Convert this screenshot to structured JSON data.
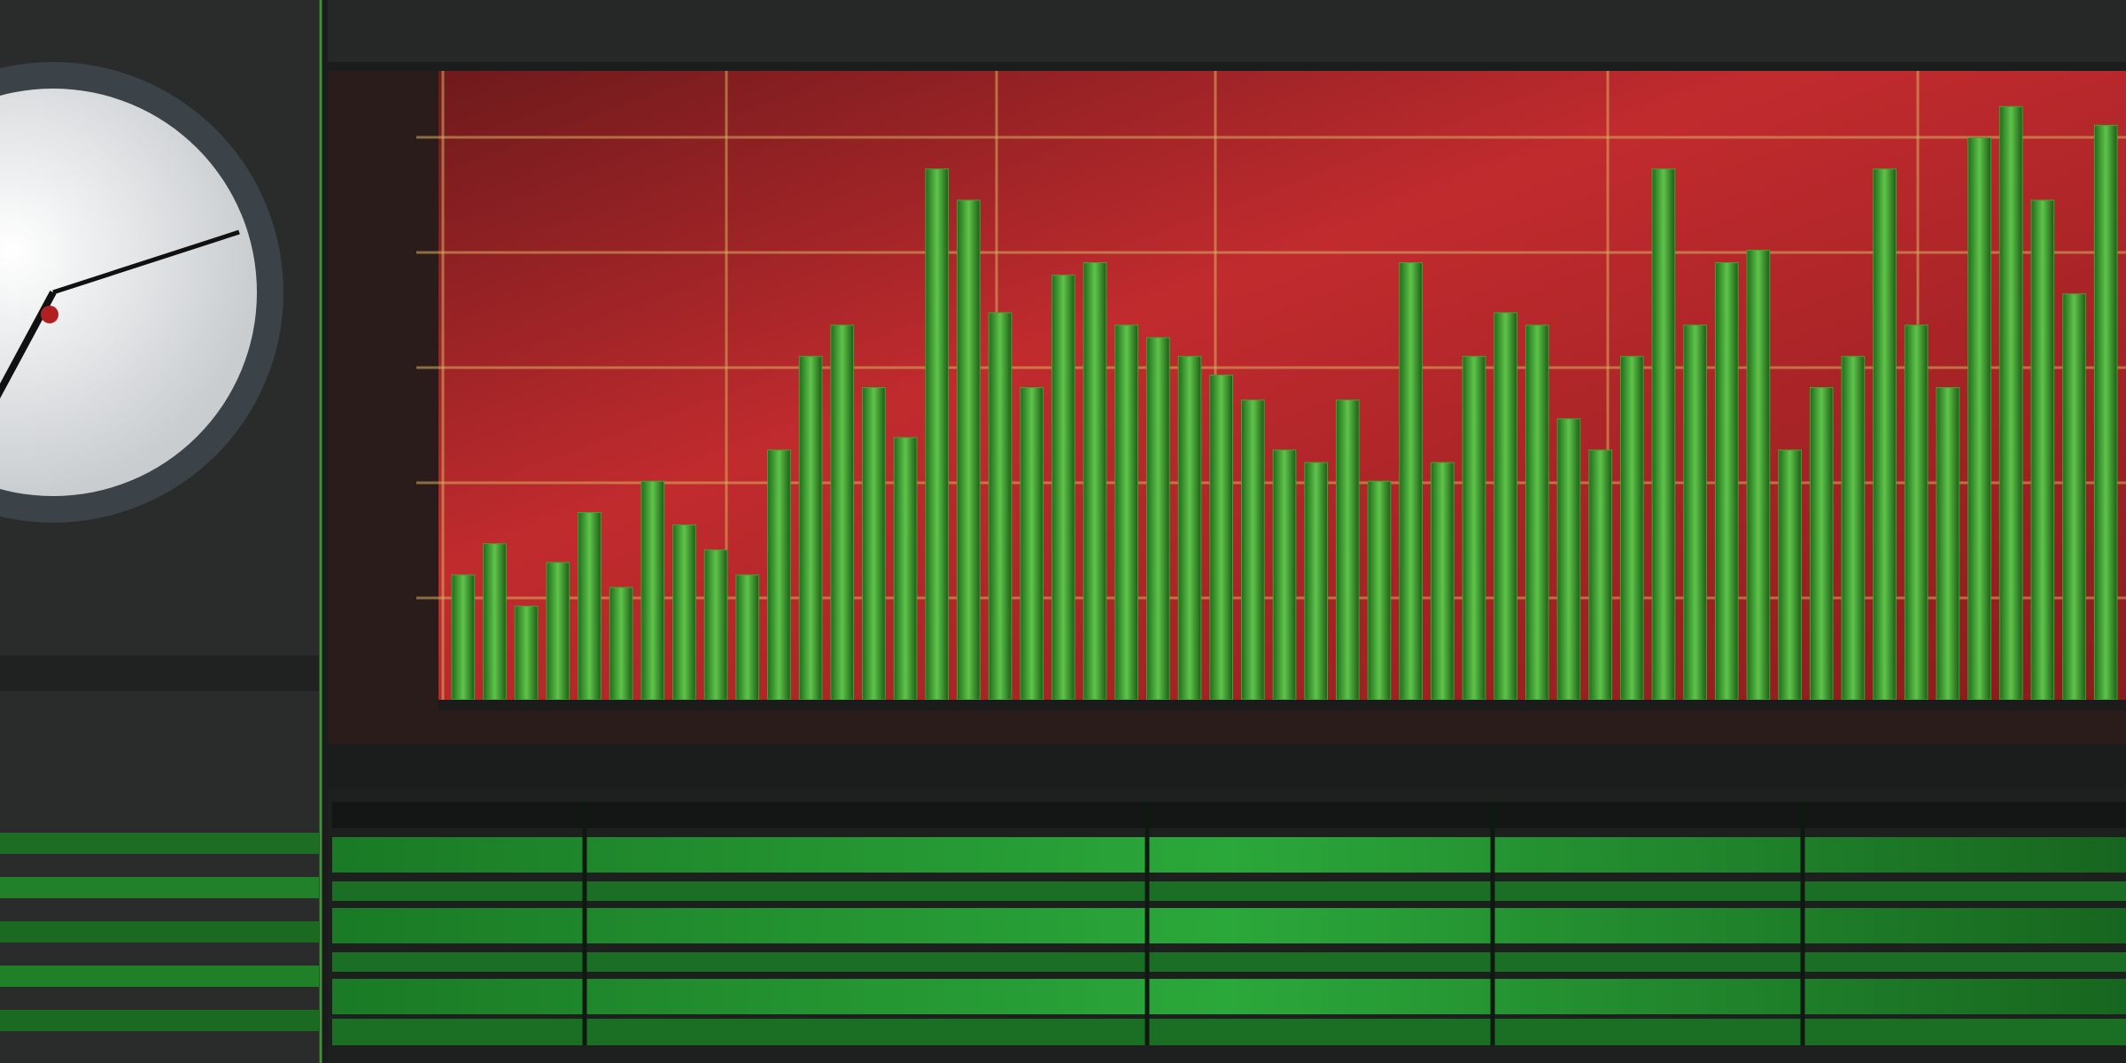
{
  "chart_data": {
    "type": "bar",
    "values": [
      20,
      25,
      15,
      22,
      30,
      18,
      35,
      28,
      24,
      20,
      40,
      55,
      60,
      50,
      42,
      85,
      80,
      62,
      50,
      68,
      70,
      60,
      58,
      55,
      52,
      48,
      40,
      38,
      48,
      35,
      70,
      38,
      55,
      62,
      60,
      45,
      40,
      55,
      85,
      60,
      70,
      72,
      40,
      50,
      55,
      85,
      60,
      50,
      90,
      95,
      80,
      65,
      92
    ],
    "ylim": [
      0,
      100
    ],
    "color": "#3fa52e"
  }
}
